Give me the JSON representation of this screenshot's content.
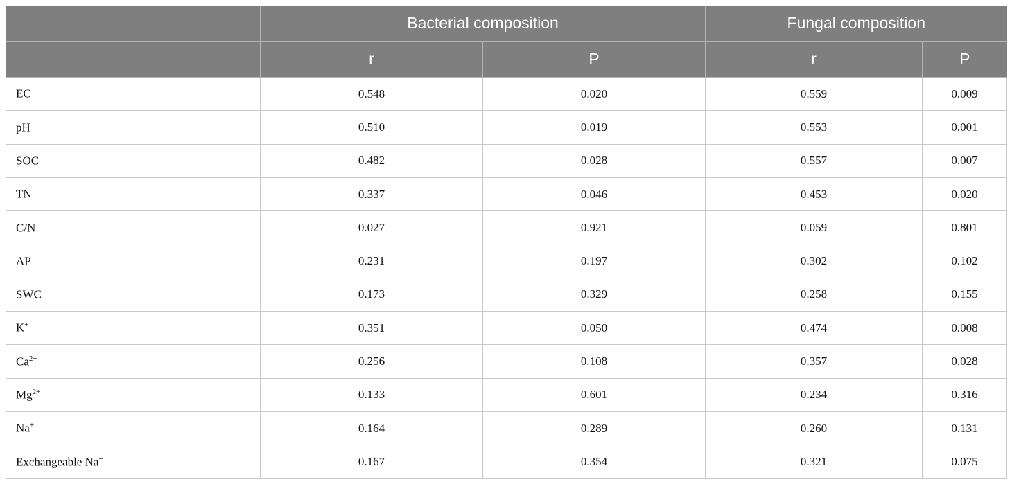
{
  "header": {
    "corner": "",
    "group_bacterial": "Bacterial composition",
    "group_fungal": "Fungal composition",
    "sub": [
      "r",
      "P",
      "r",
      "P"
    ]
  },
  "rows": [
    {
      "name": "EC",
      "sup": "",
      "br": "0.548",
      "bp": "0.020",
      "fr": "0.559",
      "fp": "0.009"
    },
    {
      "name": "pH",
      "sup": "",
      "br": "0.510",
      "bp": "0.019",
      "fr": "0.553",
      "fp": "0.001"
    },
    {
      "name": "SOC",
      "sup": "",
      "br": "0.482",
      "bp": "0.028",
      "fr": "0.557",
      "fp": "0.007"
    },
    {
      "name": "TN",
      "sup": "",
      "br": "0.337",
      "bp": "0.046",
      "fr": "0.453",
      "fp": "0.020"
    },
    {
      "name": "C/N",
      "sup": "",
      "br": "0.027",
      "bp": "0.921",
      "fr": "0.059",
      "fp": "0.801"
    },
    {
      "name": "AP",
      "sup": "",
      "br": "0.231",
      "bp": "0.197",
      "fr": "0.302",
      "fp": "0.102"
    },
    {
      "name": "SWC",
      "sup": "",
      "br": "0.173",
      "bp": "0.329",
      "fr": "0.258",
      "fp": "0.155"
    },
    {
      "name": "K",
      "sup": "+",
      "br": "0.351",
      "bp": "0.050",
      "fr": "0.474",
      "fp": "0.008"
    },
    {
      "name": "Ca",
      "sup": "2+",
      "br": "0.256",
      "bp": "0.108",
      "fr": "0.357",
      "fp": "0.028"
    },
    {
      "name": "Mg",
      "sup": "2+",
      "br": "0.133",
      "bp": "0.601",
      "fr": "0.234",
      "fp": "0.316"
    },
    {
      "name": "Na",
      "sup": "+",
      "br": "0.164",
      "bp": "0.289",
      "fr": "0.260",
      "fp": "0.131"
    },
    {
      "name": "Exchangeable Na",
      "sup": "+",
      "br": "0.167",
      "bp": "0.354",
      "fr": "0.321",
      "fp": "0.075"
    }
  ]
}
